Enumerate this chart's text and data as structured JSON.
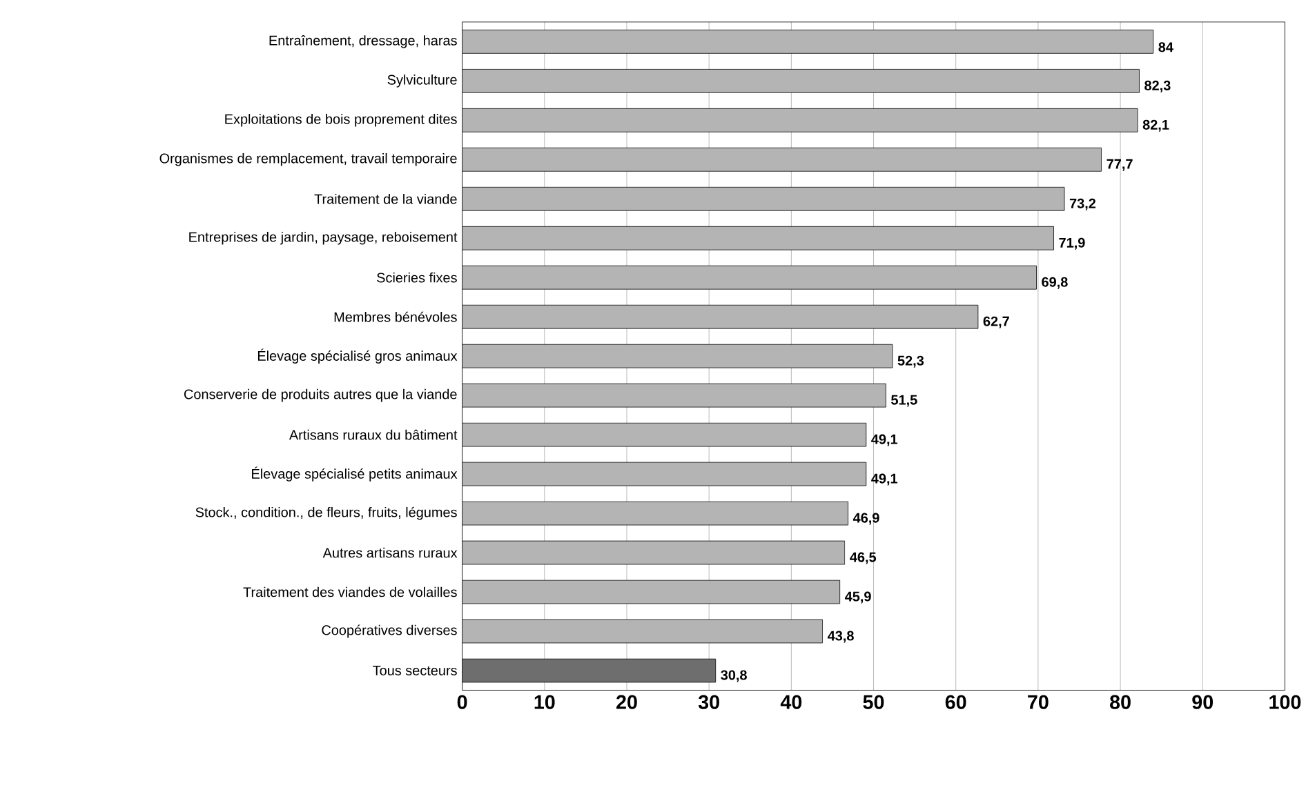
{
  "chart_data": {
    "type": "bar",
    "orientation": "horizontal",
    "categories": [
      "Entraînement, dressage, haras",
      "Sylviculture",
      "Exploitations de bois proprement dites",
      "Organismes de remplacement, travail temporaire",
      "Traitement de la viande",
      "Entreprises de jardin, paysage, reboisement",
      "Scieries fixes",
      "Membres bénévoles",
      "Élevage spécialisé gros animaux",
      "Conserverie de produits autres que la viande",
      "Artisans ruraux du bâtiment",
      "Élevage spécialisé petits animaux",
      "Stock., condition., de fleurs, fruits, légumes",
      "Autres artisans ruraux",
      "Traitement des viandes de volailles",
      "Coopératives diverses",
      "Tous secteurs"
    ],
    "values": [
      84,
      82.3,
      82.1,
      77.7,
      73.2,
      71.9,
      69.8,
      62.7,
      52.3,
      51.5,
      49.1,
      49.1,
      46.9,
      46.5,
      45.9,
      43.8,
      30.8
    ],
    "value_labels": [
      "84",
      "82,3",
      "82,1",
      "77,7",
      "73,2",
      "71,9",
      "69,8",
      "62,7",
      "52,3",
      "51,5",
      "49,1",
      "49,1",
      "46,9",
      "46,5",
      "45,9",
      "43,8",
      "30,8"
    ],
    "colors": [
      "#b4b4b4",
      "#b4b4b4",
      "#b4b4b4",
      "#b4b4b4",
      "#b4b4b4",
      "#b4b4b4",
      "#b4b4b4",
      "#b4b4b4",
      "#b4b4b4",
      "#b4b4b4",
      "#b4b4b4",
      "#b4b4b4",
      "#b4b4b4",
      "#b4b4b4",
      "#b4b4b4",
      "#b4b4b4",
      "#6e6e6e"
    ],
    "xlim": [
      0,
      100
    ],
    "xticks": [
      0,
      10,
      20,
      30,
      40,
      50,
      60,
      70,
      80,
      90,
      100
    ],
    "grid": "x"
  }
}
